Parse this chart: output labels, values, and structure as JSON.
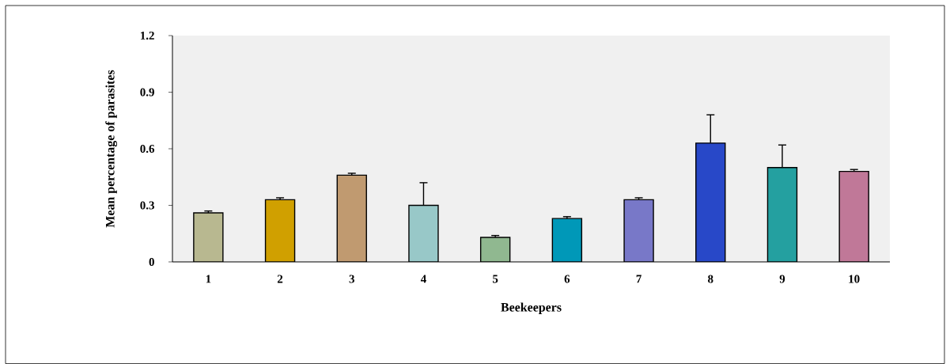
{
  "chart_data": {
    "type": "bar",
    "xlabel": "Beekeepers",
    "ylabel": "Mean percentage of parasites",
    "categories": [
      "1",
      "2",
      "3",
      "4",
      "5",
      "6",
      "7",
      "8",
      "9",
      "10"
    ],
    "values": [
      0.26,
      0.33,
      0.46,
      0.3,
      0.13,
      0.23,
      0.33,
      0.63,
      0.5,
      0.48
    ],
    "errors": [
      0.01,
      0.01,
      0.01,
      0.12,
      0.01,
      0.01,
      0.01,
      0.15,
      0.12,
      0.01
    ],
    "colors": [
      "#b8b890",
      "#d0a000",
      "#c09a70",
      "#98c8c8",
      "#90b890",
      "#0098b8",
      "#7878c8",
      "#2848c8",
      "#24a0a0",
      "#c07898"
    ],
    "ylim": [
      0,
      1.2
    ],
    "yticks": [
      0,
      0.3,
      0.6,
      0.9,
      1.2
    ]
  }
}
